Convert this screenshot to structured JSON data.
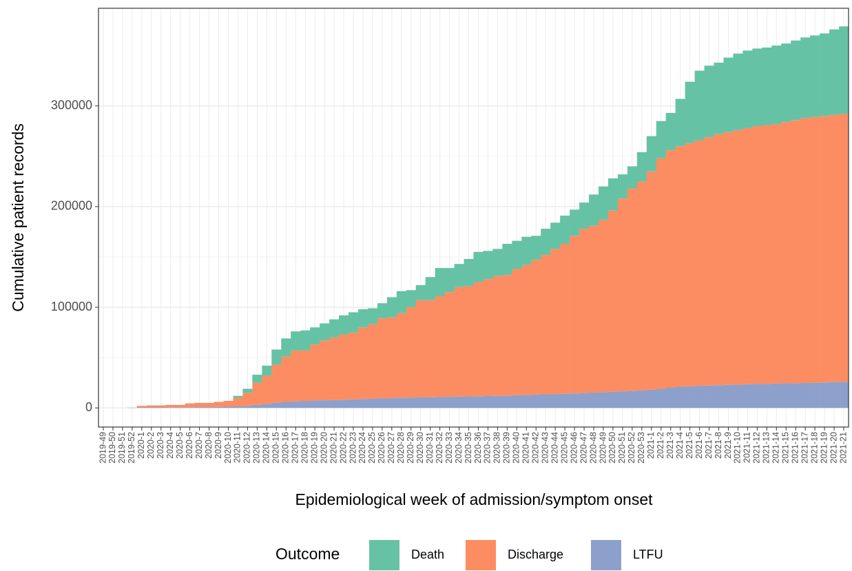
{
  "chart_data": {
    "type": "stacked_bar",
    "x_label": "Epidemiological week of admission/symptom onset",
    "y_label": "Cumulative patient records",
    "legend_title": "Outcome",
    "categories": [
      "2019-49",
      "2019-50",
      "2019-51",
      "2019-52",
      "2020-1",
      "2020-2",
      "2020-3",
      "2020-4",
      "2020-5",
      "2020-6",
      "2020-7",
      "2020-8",
      "2020-9",
      "2020-10",
      "2020-11",
      "2020-12",
      "2020-13",
      "2020-14",
      "2020-15",
      "2020-16",
      "2020-17",
      "2020-18",
      "2020-19",
      "2020-20",
      "2020-21",
      "2020-22",
      "2020-23",
      "2020-24",
      "2020-25",
      "2020-26",
      "2020-27",
      "2020-28",
      "2020-29",
      "2020-30",
      "2020-31",
      "2020-32",
      "2020-33",
      "2020-34",
      "2020-35",
      "2020-36",
      "2020-37",
      "2020-38",
      "2020-39",
      "2020-40",
      "2020-41",
      "2020-42",
      "2020-43",
      "2020-44",
      "2020-45",
      "2020-46",
      "2020-47",
      "2020-48",
      "2020-49",
      "2020-50",
      "2020-51",
      "2020-52",
      "2020-53",
      "2021-1",
      "2021-2",
      "2021-3",
      "2021-4",
      "2021-5",
      "2021-6",
      "2021-7",
      "2021-8",
      "2021-9",
      "2021-10",
      "2021-11",
      "2021-12",
      "2021-13",
      "2021-14",
      "2021-15",
      "2021-16",
      "2021-17",
      "2021-18",
      "2021-19",
      "2021-20",
      "2021-21"
    ],
    "series": [
      {
        "name": "Death",
        "color": "#66c2a5",
        "values": [
          0,
          0,
          0,
          0,
          0,
          0,
          0,
          0,
          0,
          0,
          0,
          0,
          0,
          0,
          2000,
          4000,
          8000,
          10000,
          15000,
          18000,
          19000,
          20000,
          17000,
          17000,
          18000,
          19000,
          20000,
          18000,
          16000,
          15000,
          20000,
          22000,
          17000,
          15000,
          23000,
          28000,
          24000,
          23000,
          27000,
          30000,
          28000,
          27000,
          31000,
          28000,
          28000,
          24000,
          26000,
          26000,
          28000,
          26000,
          26000,
          31000,
          33000,
          32000,
          24000,
          22000,
          29000,
          35000,
          37000,
          37000,
          47000,
          61000,
          69000,
          71000,
          71000,
          74000,
          76000,
          77000,
          77000,
          77000,
          78000,
          78000,
          79000,
          80000,
          81000,
          82000,
          85000,
          87000
        ]
      },
      {
        "name": "Discharge",
        "color": "#fc8d62",
        "values": [
          0,
          0,
          0,
          0,
          1500,
          2000,
          2000,
          2400,
          2400,
          3800,
          4200,
          4200,
          5000,
          5800,
          8500,
          13000,
          22000,
          28000,
          38000,
          45000,
          50500,
          50000,
          55700,
          59400,
          62100,
          64800,
          66500,
          71200,
          73900,
          79600,
          80300,
          84000,
          89800,
          96600,
          96400,
          100200,
          104000,
          108800,
          109600,
          113400,
          116200,
          119000,
          119700,
          125400,
          129100,
          133800,
          138500,
          144200,
          148900,
          156600,
          163200,
          165800,
          171400,
          180000,
          191500,
          201000,
          207500,
          217000,
          229000,
          236000,
          239000,
          241500,
          244000,
          246700,
          249400,
          251100,
          252800,
          254500,
          256200,
          257000,
          257800,
          259600,
          261400,
          263200,
          264000,
          264700,
          265400,
          266000
        ]
      },
      {
        "name": "LTFU",
        "color": "#8da0cb",
        "values": [
          0,
          0,
          0,
          300,
          500,
          500,
          500,
          600,
          600,
          700,
          800,
          800,
          1000,
          1200,
          1500,
          2000,
          3000,
          4000,
          5000,
          6000,
          6500,
          7000,
          7300,
          7600,
          7900,
          8200,
          8500,
          8800,
          9100,
          9400,
          9700,
          10000,
          10200,
          10400,
          10600,
          10800,
          11000,
          11200,
          11400,
          11600,
          11800,
          12000,
          12300,
          12600,
          12900,
          13200,
          13500,
          13800,
          14100,
          14400,
          14800,
          15200,
          15600,
          16000,
          16500,
          17000,
          17500,
          18000,
          19000,
          20000,
          21000,
          21500,
          22000,
          22300,
          22600,
          22900,
          23200,
          23500,
          23800,
          24000,
          24200,
          24400,
          24600,
          24800,
          25000,
          25300,
          25600,
          26000
        ]
      }
    ],
    "ylim": [
      -19000,
      397000
    ],
    "yticks": [
      0,
      100000,
      200000,
      300000
    ],
    "grid": true
  }
}
